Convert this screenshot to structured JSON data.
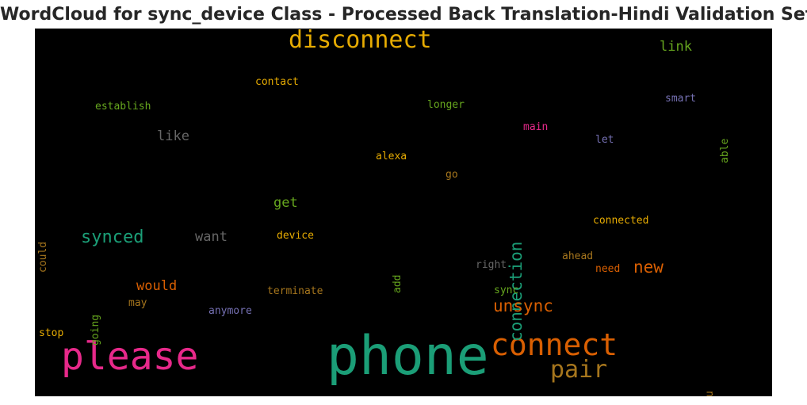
{
  "chart_data": {
    "type": "wordcloud",
    "title": "WordCloud for sync_device Class - Processed Back Translation-Hindi Validation Set",
    "background": "#000000",
    "words": [
      {
        "text": "phone",
        "color": "#1b9e77"
      },
      {
        "text": "please",
        "color": "#e7298a"
      },
      {
        "text": "connect",
        "color": "#d95f02"
      },
      {
        "text": "disconnect",
        "color": "#e6ab02"
      },
      {
        "text": "pair",
        "color": "#a6761d"
      },
      {
        "text": "connection",
        "color": "#1b9e77"
      },
      {
        "text": "synced",
        "color": "#1b9e77"
      },
      {
        "text": "unsync",
        "color": "#d95f02"
      },
      {
        "text": "new",
        "color": "#d95f02"
      },
      {
        "text": "link",
        "color": "#66a61e"
      },
      {
        "text": "would",
        "color": "#d95f02"
      },
      {
        "text": "want",
        "color": "#666666"
      },
      {
        "text": "like",
        "color": "#666666"
      },
      {
        "text": "get",
        "color": "#66a61e"
      },
      {
        "text": "contact",
        "color": "#e6ab02"
      },
      {
        "text": "establish",
        "color": "#66a61e"
      },
      {
        "text": "longer",
        "color": "#66a61e"
      },
      {
        "text": "smart",
        "color": "#7570b3"
      },
      {
        "text": "main",
        "color": "#e7298a"
      },
      {
        "text": "able",
        "color": "#66a61e"
      },
      {
        "text": "let",
        "color": "#7570b3"
      },
      {
        "text": "alexa",
        "color": "#e6ab02"
      },
      {
        "text": "go",
        "color": "#a6761d"
      },
      {
        "text": "could",
        "color": "#a6761d"
      },
      {
        "text": "device",
        "color": "#e6ab02"
      },
      {
        "text": "connected",
        "color": "#e6ab02"
      },
      {
        "text": "add",
        "color": "#66a61e"
      },
      {
        "text": "right",
        "color": "#666666"
      },
      {
        "text": "ahead",
        "color": "#a6761d"
      },
      {
        "text": "need",
        "color": "#d95f02"
      },
      {
        "text": "going",
        "color": "#66a61e"
      },
      {
        "text": "may",
        "color": "#a6761d"
      },
      {
        "text": "terminate",
        "color": "#a6761d"
      },
      {
        "text": "sync",
        "color": "#66a61e"
      },
      {
        "text": "anymore",
        "color": "#7570b3"
      },
      {
        "text": "stop",
        "color": "#e6ab02"
      },
      {
        "text": "u",
        "color": "#a6761d"
      }
    ]
  }
}
